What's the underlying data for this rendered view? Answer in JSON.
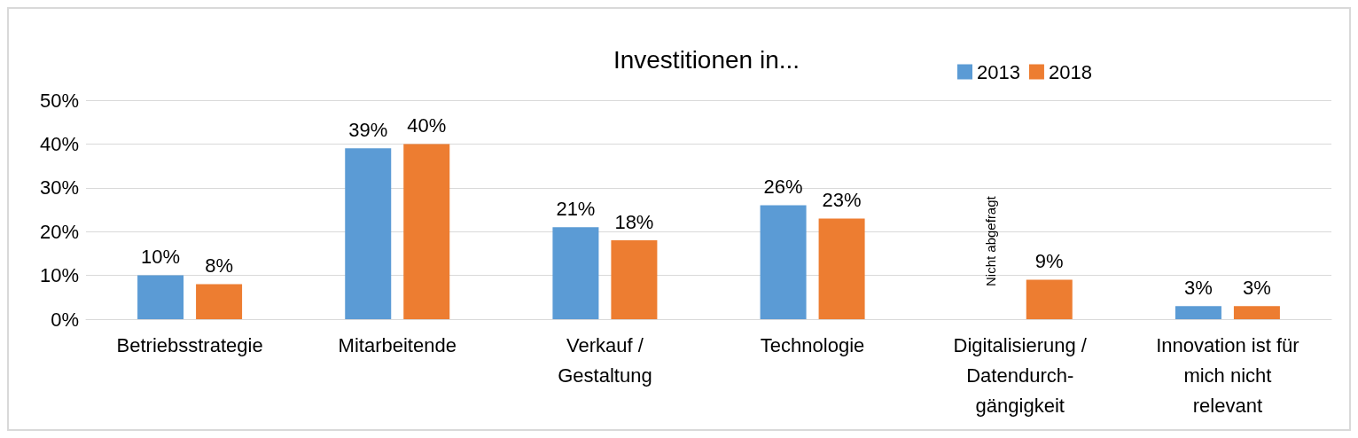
{
  "chart_data": {
    "type": "bar",
    "title": "Investitionen in...",
    "categories": [
      "Betriebsstrategie",
      "Mitarbeitende",
      "Verkauf /\nGestaltung",
      "Technologie",
      "Digitalisierung /\nDatendurch-\ngängigkeit",
      "Innovation ist für\nmich nicht\nrelevant"
    ],
    "series": [
      {
        "name": "2013",
        "color": "#5b9bd5",
        "values": [
          10,
          39,
          21,
          26,
          null,
          3
        ]
      },
      {
        "name": "2018",
        "color": "#ed7d31",
        "values": [
          8,
          40,
          18,
          23,
          9,
          3
        ]
      }
    ],
    "ylim": [
      0,
      50
    ],
    "yticks": [
      {
        "value": 0,
        "label": "0%"
      },
      {
        "value": 10,
        "label": "10%"
      },
      {
        "value": 20,
        "label": "20%"
      },
      {
        "value": 30,
        "label": "30%"
      },
      {
        "value": 40,
        "label": "40%"
      },
      {
        "value": 50,
        "label": "50%"
      }
    ],
    "value_labels": [
      [
        "10%",
        "39%",
        "21%",
        "26%",
        null,
        "3%"
      ],
      [
        "8%",
        "40%",
        "18%",
        "23%",
        "9%",
        "3%"
      ]
    ],
    "annotations": [
      "Nicht abgefragt"
    ],
    "grid": "y",
    "legend": "top right"
  }
}
